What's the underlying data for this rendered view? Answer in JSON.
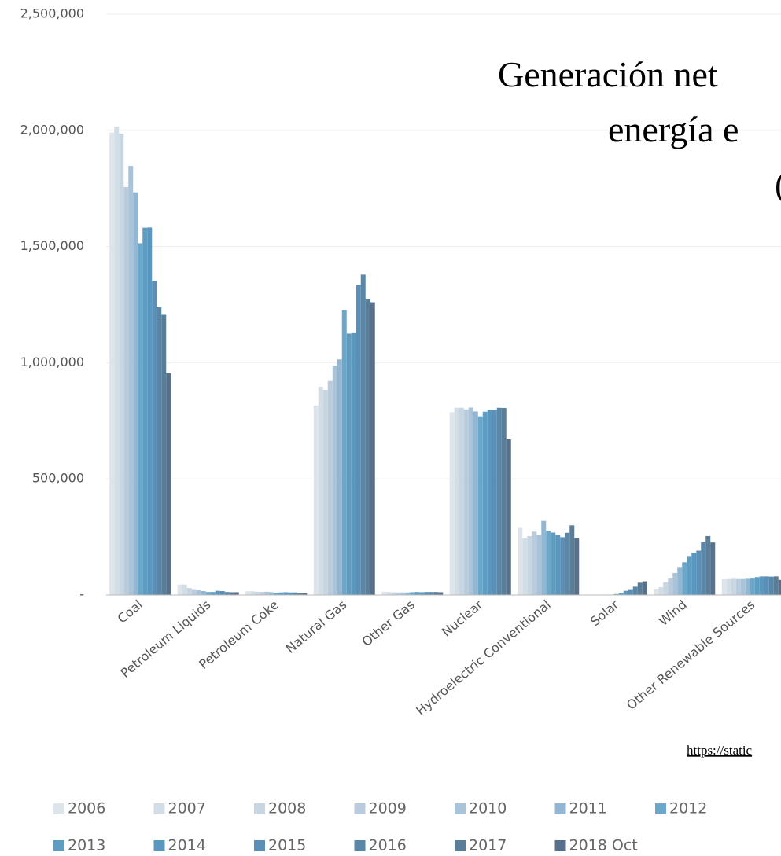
{
  "chart_data": {
    "type": "bar",
    "title_lines": [
      "Generación net",
      "energía e",
      "("
    ],
    "source": "https://static",
    "categories": [
      "Coal",
      "Petroleum Liquids",
      "Petroleum Coke",
      "Natural Gas",
      "Other Gas",
      "Nuclear",
      "Hydroelectric Conventional",
      "Solar",
      "Wind",
      "Other Renewable Sources"
    ],
    "series": [
      {
        "name": "2006",
        "color": "#dde4ea",
        "values": [
          1990000,
          45000,
          16000,
          816000,
          14000,
          787000,
          289000,
          500,
          27000,
          71000
        ]
      },
      {
        "name": "2007",
        "color": "#d3dde6",
        "values": [
          2016000,
          45000,
          16000,
          897000,
          13000,
          806000,
          247000,
          600,
          34000,
          72000
        ]
      },
      {
        "name": "2008",
        "color": "#c8d6e2",
        "values": [
          1986000,
          30000,
          14000,
          883000,
          11000,
          806000,
          254000,
          900,
          55000,
          73000
        ]
      },
      {
        "name": "2009",
        "color": "#b9cbdc",
        "values": [
          1756000,
          25000,
          13000,
          921000,
          11000,
          799000,
          273000,
          900,
          74000,
          72000
        ]
      },
      {
        "name": "2010",
        "color": "#a9c3d8",
        "values": [
          1847000,
          23000,
          14000,
          988000,
          11000,
          807000,
          260000,
          1200,
          95000,
          72000
        ]
      },
      {
        "name": "2011",
        "color": "#93b7d2",
        "values": [
          1733000,
          17000,
          12000,
          1014000,
          11000,
          790000,
          319000,
          1800,
          121000,
          73000
        ]
      },
      {
        "name": "2012",
        "color": "#6aa7c9",
        "values": [
          1514000,
          13000,
          10000,
          1226000,
          12000,
          769000,
          276000,
          4000,
          141000,
          74000
        ]
      },
      {
        "name": "2013",
        "color": "#5f9cc2",
        "values": [
          1581000,
          13000,
          11000,
          1125000,
          13000,
          789000,
          269000,
          9000,
          168000,
          77000
        ]
      },
      {
        "name": "2014",
        "color": "#5a97bf",
        "values": [
          1582000,
          18000,
          12000,
          1127000,
          12000,
          797000,
          259000,
          18000,
          182000,
          80000
        ]
      },
      {
        "name": "2015",
        "color": "#5b8fb5",
        "values": [
          1352000,
          17000,
          11000,
          1335000,
          13000,
          797000,
          249000,
          25000,
          191000,
          80000
        ]
      },
      {
        "name": "2016",
        "color": "#5a86a8",
        "values": [
          1239000,
          13000,
          11000,
          1379000,
          13000,
          806000,
          268000,
          36000,
          227000,
          79000
        ]
      },
      {
        "name": "2017",
        "color": "#5a7d98",
        "values": [
          1206000,
          12000,
          9000,
          1273000,
          13000,
          805000,
          300000,
          53000,
          254000,
          80000
        ]
      },
      {
        "name": "2018 Oct",
        "color": "#58708a",
        "values": [
          955000,
          12000,
          8000,
          1260000,
          12000,
          670000,
          245000,
          59000,
          226000,
          65000
        ]
      }
    ],
    "ylim": [
      0,
      2500000
    ],
    "yticks": [
      {
        "value": 0,
        "label": "-"
      },
      {
        "value": 500000,
        "label": "500,000"
      },
      {
        "value": 1000000,
        "label": "1,000,000"
      },
      {
        "value": 1500000,
        "label": "1,500,000"
      },
      {
        "value": 2000000,
        "label": "2,000,000"
      },
      {
        "value": 2500000,
        "label": "2,500,000"
      }
    ],
    "grid": true
  }
}
